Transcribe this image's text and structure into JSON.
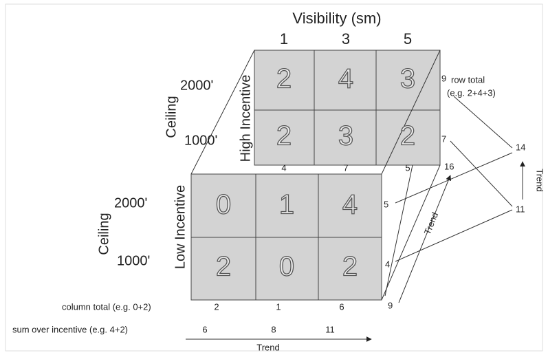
{
  "title": "Visibility (sm)",
  "column_headers": [
    "1",
    "3",
    "5"
  ],
  "high_incentive": {
    "label": "High Incentive",
    "ceiling_label": "Ceiling",
    "row_labels": [
      "2000'",
      "1000'"
    ],
    "cells": [
      [
        "2",
        "4",
        "3"
      ],
      [
        "2",
        "3",
        "2"
      ]
    ],
    "row_totals": [
      "9",
      "7"
    ],
    "column_totals": [
      "4",
      "7",
      "5"
    ]
  },
  "row_total_note": [
    "row total",
    "(e.g. 2+4+3)"
  ],
  "low_incentive": {
    "label": "Low Incentive",
    "ceiling_label": "Ceiling",
    "row_labels": [
      "2000'",
      "1000'"
    ],
    "cells": [
      [
        "0",
        "1",
        "4"
      ],
      [
        "2",
        "0",
        "2"
      ]
    ],
    "row_totals": [
      "5",
      "4"
    ],
    "column_totals": [
      "2",
      "1",
      "6"
    ]
  },
  "column_total_note": "column total (e.g. 0+2)",
  "sum_note": "sum over incentive (e.g. 4+2)",
  "sums": [
    "6",
    "8",
    "11"
  ],
  "right_totals": [
    "16",
    "14",
    "11",
    "9"
  ],
  "trend_labels": [
    "Trend",
    "Trend",
    "Trend"
  ]
}
